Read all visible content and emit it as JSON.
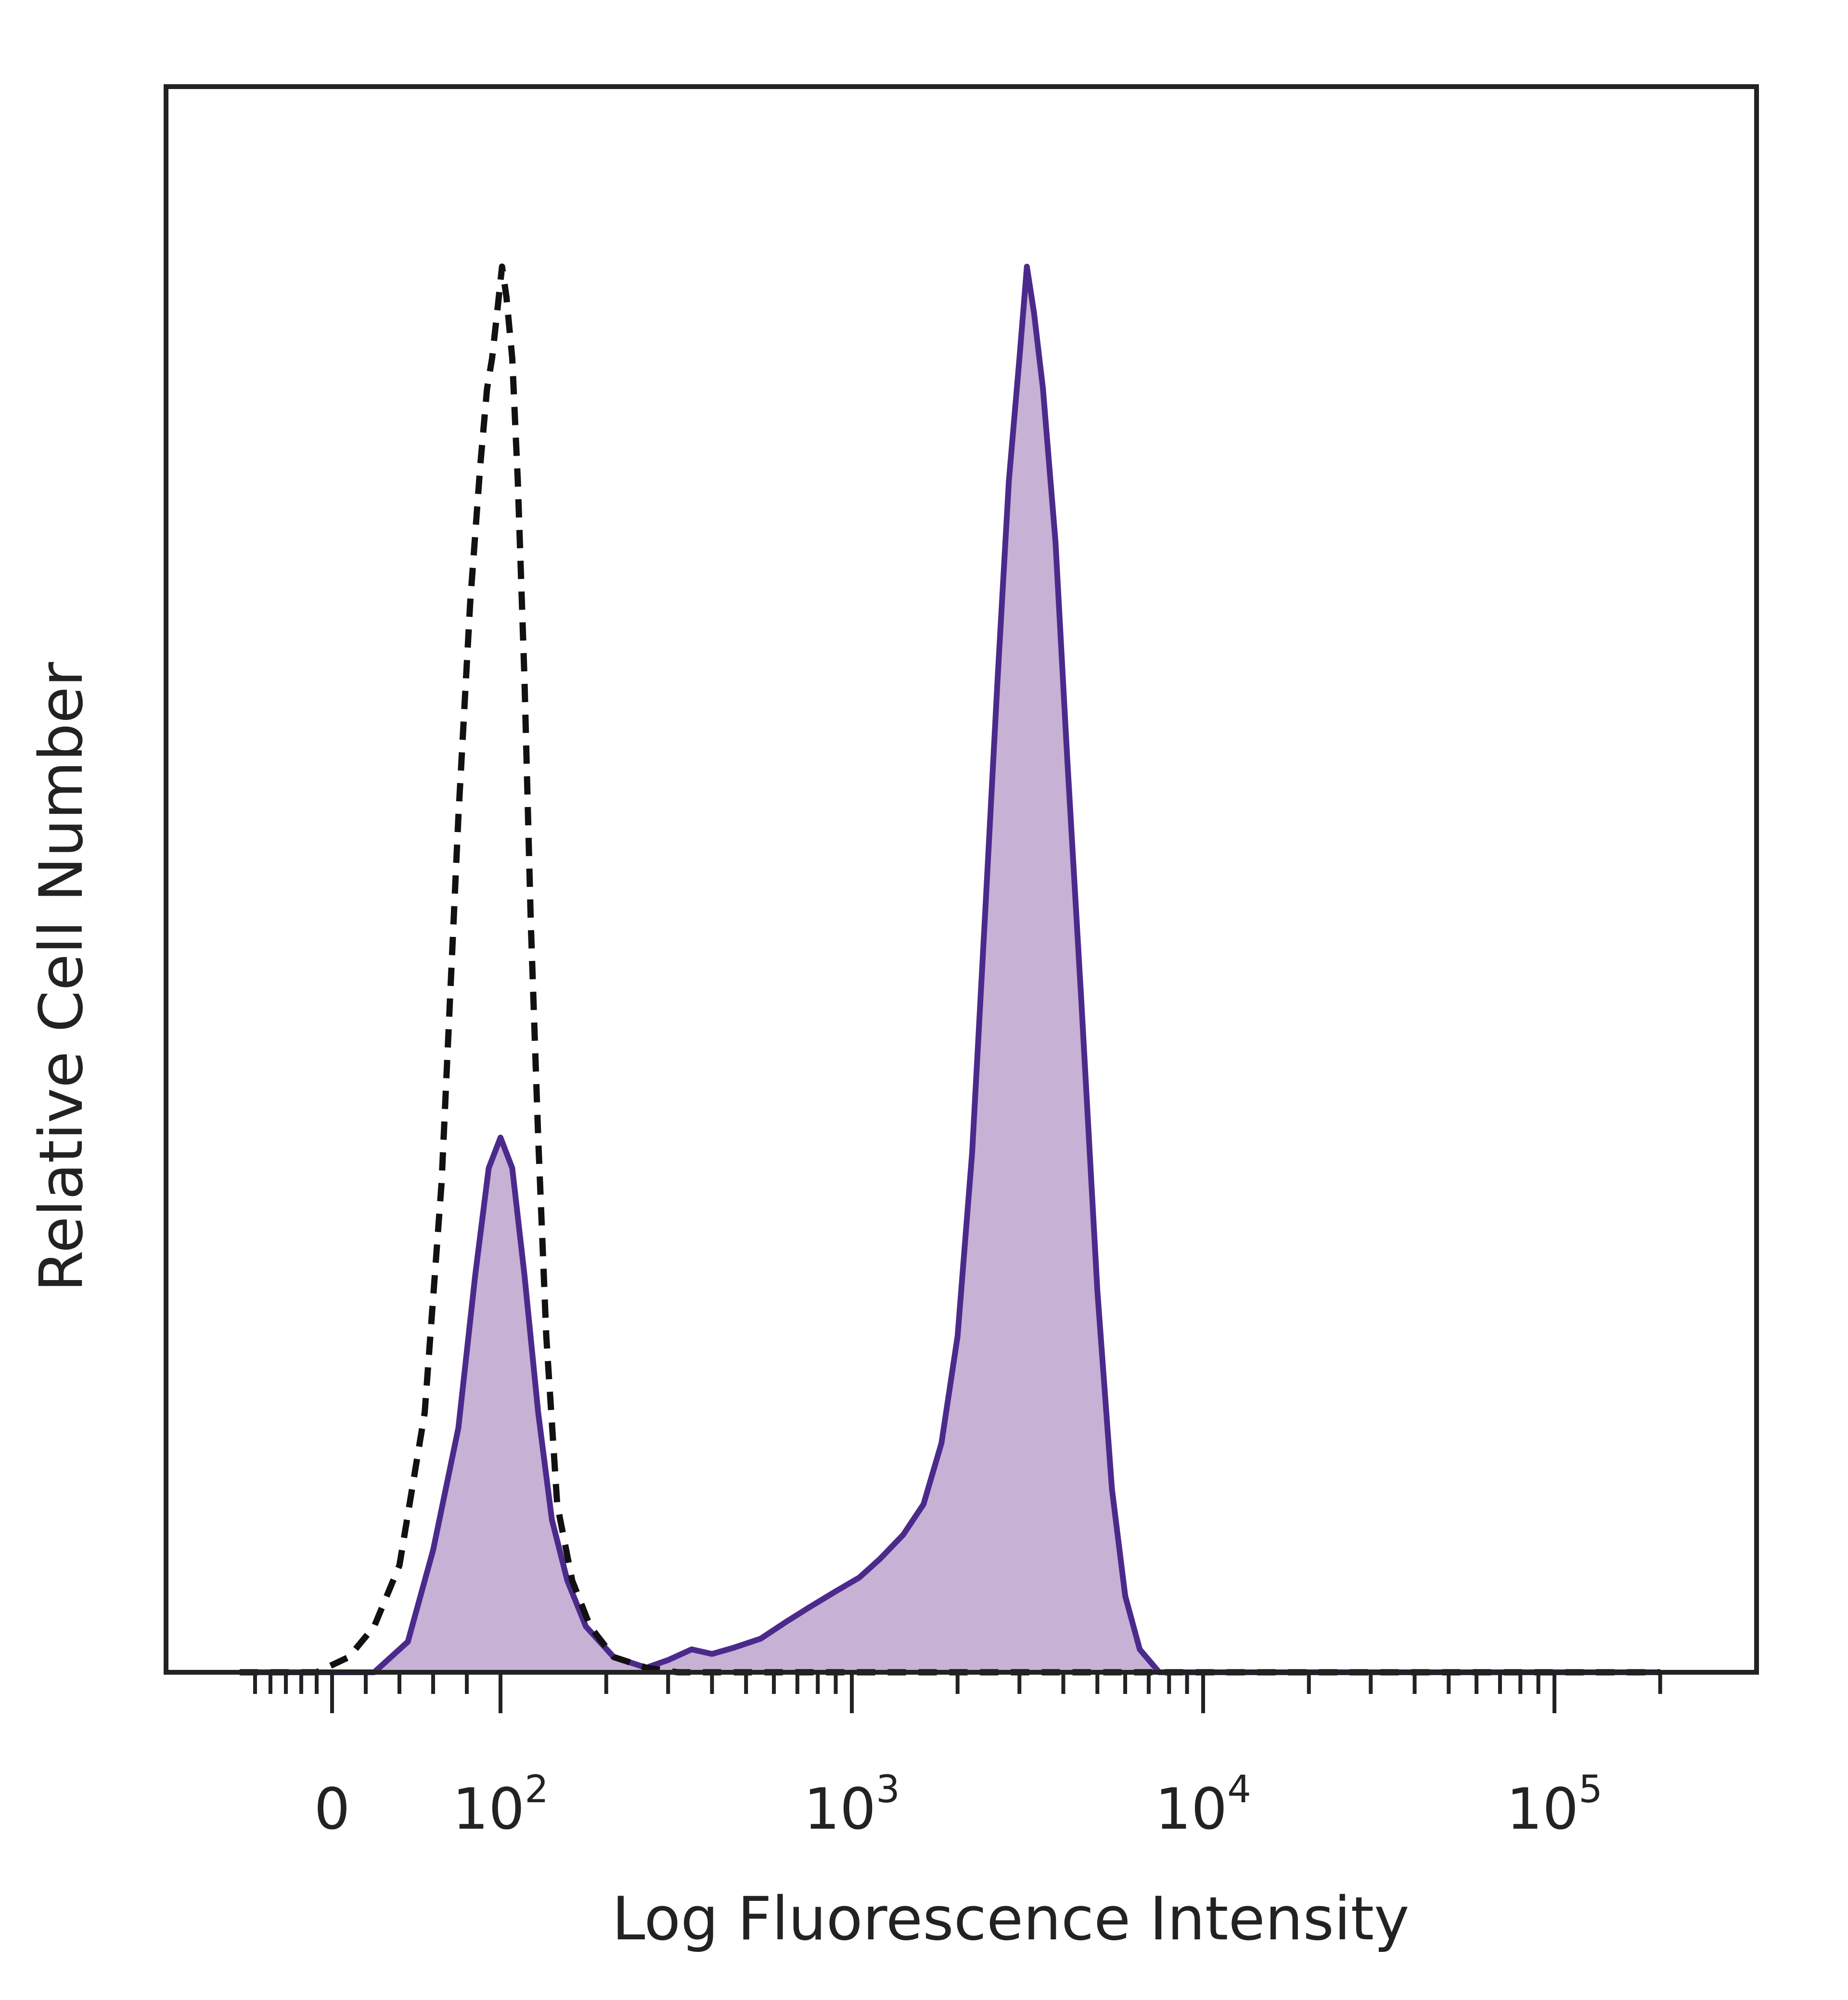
{
  "chart_data": {
    "type": "area",
    "xlabel": "Log Fluorescence Intensity",
    "ylabel": "Relative Cell Number",
    "x_scale": "biexponential",
    "x_ticks": [
      {
        "value": 0,
        "label": "0"
      },
      {
        "value": 100,
        "label": "10",
        "exp": "2"
      },
      {
        "value": 1000,
        "label": "10",
        "exp": "3"
      },
      {
        "value": 10000,
        "label": "10",
        "exp": "4"
      },
      {
        "value": 100000,
        "label": "10",
        "exp": "5"
      }
    ],
    "ylim": [
      0,
      100
    ],
    "grid": false,
    "series": [
      {
        "style": "dashed",
        "color": "#111111",
        "points": [
          [
            -120,
            0
          ],
          [
            -20,
            0
          ],
          [
            10,
            1
          ],
          [
            25,
            3
          ],
          [
            40,
            7
          ],
          [
            55,
            17
          ],
          [
            65,
            32
          ],
          [
            75,
            56
          ],
          [
            82,
            70
          ],
          [
            88,
            79
          ],
          [
            92,
            84
          ],
          [
            95,
            86
          ],
          [
            98,
            89
          ],
          [
            101,
            92
          ],
          [
            104,
            90
          ],
          [
            108,
            86
          ],
          [
            112,
            78
          ],
          [
            117,
            65
          ],
          [
            122,
            49
          ],
          [
            128,
            35
          ],
          [
            135,
            22
          ],
          [
            145,
            11
          ],
          [
            160,
            6
          ],
          [
            180,
            3
          ],
          [
            210,
            1
          ],
          [
            260,
            0.3
          ],
          [
            320,
            0
          ],
          [
            100000,
            0
          ],
          [
            200000,
            0
          ]
        ]
      },
      {
        "style": "filled",
        "color": "#4b2a8c",
        "fill": "#c7b1d4",
        "points": [
          [
            -120,
            0
          ],
          [
            25,
            0
          ],
          [
            45,
            2
          ],
          [
            60,
            8
          ],
          [
            75,
            16
          ],
          [
            85,
            26
          ],
          [
            93,
            33
          ],
          [
            100,
            35
          ],
          [
            108,
            33
          ],
          [
            117,
            26
          ],
          [
            128,
            17
          ],
          [
            140,
            10
          ],
          [
            155,
            6
          ],
          [
            175,
            3
          ],
          [
            210,
            1
          ],
          [
            260,
            0.3
          ],
          [
            300,
            0.8
          ],
          [
            350,
            1.5
          ],
          [
            400,
            1.2
          ],
          [
            460,
            1.6
          ],
          [
            550,
            2.2
          ],
          [
            650,
            3.3
          ],
          [
            750,
            4.2
          ],
          [
            900,
            5.3
          ],
          [
            1050,
            6.2
          ],
          [
            1200,
            7.4
          ],
          [
            1400,
            9.0
          ],
          [
            1600,
            11.0
          ],
          [
            1800,
            15
          ],
          [
            2000,
            22
          ],
          [
            2200,
            34
          ],
          [
            2400,
            50
          ],
          [
            2600,
            65
          ],
          [
            2800,
            78
          ],
          [
            3000,
            86
          ],
          [
            3150,
            92
          ],
          [
            3300,
            89
          ],
          [
            3500,
            84
          ],
          [
            3800,
            74
          ],
          [
            4100,
            60
          ],
          [
            4500,
            44
          ],
          [
            5000,
            25
          ],
          [
            5500,
            12
          ],
          [
            6000,
            5
          ],
          [
            6600,
            1.5
          ],
          [
            7500,
            0
          ],
          [
            100000,
            0
          ],
          [
            200000,
            0
          ]
        ]
      }
    ]
  }
}
